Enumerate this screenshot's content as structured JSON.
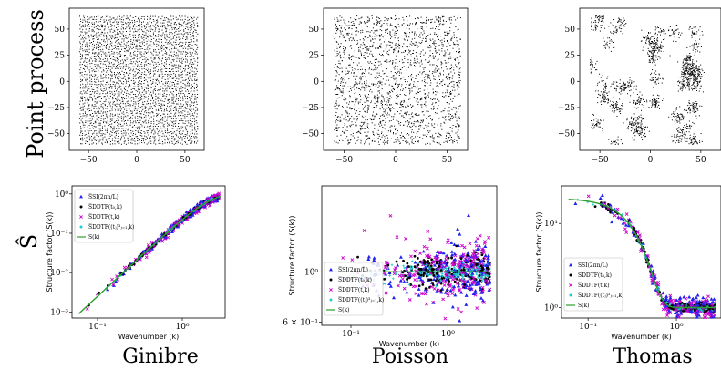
{
  "row_labels": {
    "top": "Point process",
    "bottom": "Ŝ (hat S)"
  },
  "row_label_symbol": "Ŝ",
  "column_labels": [
    "Ginibre",
    "Poisson",
    "Thomas"
  ],
  "colors": {
    "blue": "#2222ee",
    "black": "#000000",
    "magenta": "#cc00cc",
    "cyan": "#22cccc",
    "green": "#2ca02c"
  },
  "chart_data": [
    {
      "type": "scatter",
      "panel": "point-process",
      "process": "Ginibre",
      "xlim": [
        -70,
        70
      ],
      "ylim": [
        -66,
        70
      ],
      "xticks": [
        "−50",
        "0",
        "50"
      ],
      "xtick_values": [
        -50,
        0,
        50
      ],
      "yticks": [
        "50",
        "25",
        "0",
        "−25",
        "−50"
      ],
      "ytick_values": [
        50,
        25,
        0,
        -25,
        -50
      ],
      "points_region": [
        -60,
        63
      ],
      "point_count_approx": 2500,
      "pattern": "repulsive"
    },
    {
      "type": "scatter",
      "panel": "point-process",
      "process": "Poisson",
      "xlim": [
        -70,
        70
      ],
      "ylim": [
        -66,
        70
      ],
      "xticks": [
        "−50",
        "0",
        "50"
      ],
      "xtick_values": [
        -50,
        0,
        50
      ],
      "yticks": [
        "50",
        "25",
        "0",
        "−25",
        "−50"
      ],
      "ytick_values": [
        50,
        25,
        0,
        -25,
        -50
      ],
      "points_region": [
        -60,
        63
      ],
      "point_count_approx": 2000,
      "pattern": "uniform"
    },
    {
      "type": "scatter",
      "panel": "point-process",
      "process": "Thomas",
      "xlim": [
        -70,
        70
      ],
      "ylim": [
        -66,
        70
      ],
      "xticks": [
        "−50",
        "0",
        "50"
      ],
      "xtick_values": [
        -50,
        0,
        50
      ],
      "yticks": [
        "50",
        "25",
        "0",
        "−25",
        "−50"
      ],
      "ytick_values": [
        50,
        25,
        0,
        -25,
        -50
      ],
      "points_region": [
        -60,
        63
      ],
      "point_count_approx": 1600,
      "pattern": "clustered"
    },
    {
      "type": "scatter",
      "panel": "structure-factor",
      "process": "Ginibre",
      "xlabel": "Wavenumber (k)",
      "ylabel": "Structure factor (S(k))",
      "xscale": "log",
      "yscale": "log",
      "xlim": [
        0.05,
        3.2
      ],
      "ylim": [
        0.0007,
        1.6
      ],
      "xticks": [
        "10⁻¹",
        "10⁰"
      ],
      "xtick_values": [
        0.1,
        1
      ],
      "yticks": [
        "10⁰",
        "10⁻¹",
        "10⁻²",
        "10⁻³"
      ],
      "ytick_values": [
        1,
        0.1,
        0.01,
        0.001
      ],
      "legend_position": "top-left",
      "legend": [
        "\\overline{S_{SI}(2\\pi n/L)}",
        "\\overline{S_{DDTF}(t_0, k)}",
        "\\overline{S_{DDTF}(t, k)}",
        "\\overline{S_{DDTF}((t_j)^3_{j=1}, k)}",
        "S(k)"
      ],
      "theory": "1 - exp(-k^2/4)"
    },
    {
      "type": "scatter",
      "panel": "structure-factor",
      "process": "Poisson",
      "xlabel": "Wavenumber (k)",
      "ylabel": "Structure factor (S(k))",
      "xscale": "log",
      "yscale": "log",
      "xlim": [
        0.05,
        3.2
      ],
      "ylim": [
        0.58,
        2.4
      ],
      "xticks": [
        "10⁻¹",
        "10⁰"
      ],
      "xtick_values": [
        0.1,
        1
      ],
      "yticks": [
        "10⁰",
        "6 × 10⁻¹"
      ],
      "ytick_values": [
        1,
        0.6
      ],
      "legend_position": "bottom-left",
      "legend": [
        "\\overline{S_{SI}(2\\pi n/L)}",
        "\\overline{S_{DDTF}(t_0, k)}",
        "\\overline{S_{DDTF}(t, k)}",
        "\\overline{S_{DDTF}((t_j)^3_{j=1}, k)}",
        "S(k)"
      ],
      "theory": "1"
    },
    {
      "type": "scatter",
      "panel": "structure-factor",
      "process": "Thomas",
      "xlabel": "Wavenumber (k)",
      "ylabel": "Structure factor (S(k))",
      "xscale": "log",
      "yscale": "log",
      "xlim": [
        0.05,
        3.2
      ],
      "ylim": [
        0.75,
        28
      ],
      "xticks": [
        "10⁻¹",
        "10⁰"
      ],
      "xtick_values": [
        0.1,
        1
      ],
      "yticks": [
        "10¹",
        "10⁰"
      ],
      "ytick_values": [
        10,
        1
      ],
      "legend_position": "bottom-left",
      "legend": [
        "\\overline{S_{SI}(2\\pi n/L)}",
        "\\overline{S_{DDTF}(t_0, k)}",
        "\\overline{S_{DDTF}(t, k)}",
        "\\overline{S_{DDTF}((t_j)^3_{j=1}, k)}",
        "S(k)"
      ],
      "theory": "1 + 19 exp(-k^2 * 9)"
    }
  ]
}
